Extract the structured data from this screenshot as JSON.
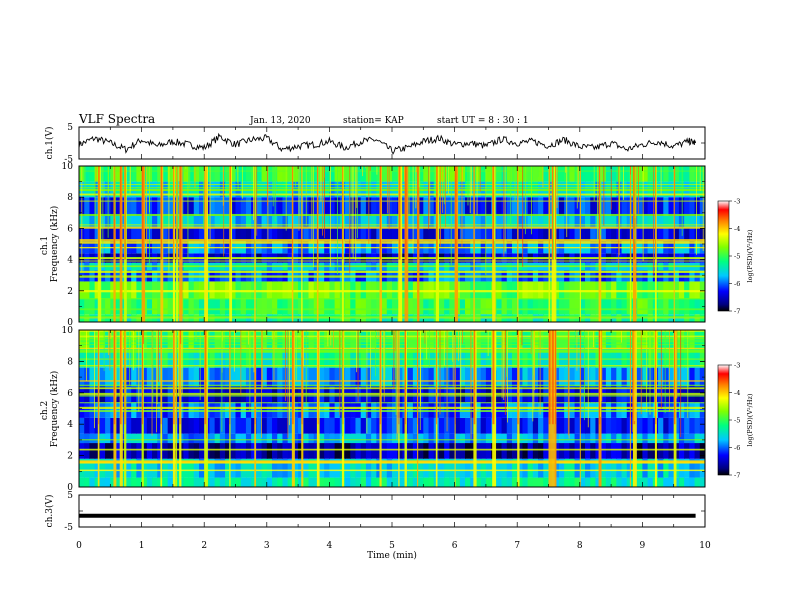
{
  "header": {
    "title": "VLF Spectra",
    "date": "Jan. 13, 2020",
    "station": "station= KAP",
    "start": "start  UT  =   8  : 30 : 1"
  },
  "chart_data": [
    {
      "type": "line",
      "name": "ch1-waveform",
      "ylabel": "ch.1(V)",
      "xlim": [
        0,
        10
      ],
      "ylim": [
        -5,
        5
      ],
      "yticks": [
        "5",
        "-5"
      ],
      "x": [
        0,
        0.25,
        0.5,
        0.75,
        1,
        1.25,
        1.5,
        1.75,
        2,
        2.25,
        2.5,
        2.75,
        3,
        3.25,
        3.5,
        3.75,
        4,
        4.25,
        4.5,
        4.75,
        5,
        5.25,
        5.5,
        5.75,
        6,
        6.25,
        6.5,
        6.75,
        7,
        7.25,
        7.5,
        7.75,
        8,
        8.25,
        8.5,
        8.75,
        9,
        9.25,
        9.5,
        9.75,
        9.85
      ],
      "values": [
        -0.5,
        1.5,
        0,
        -2,
        1,
        -1,
        0.5,
        -0.5,
        -1.5,
        2,
        -0.5,
        1,
        1.5,
        -2,
        -1,
        -0.5,
        0.5,
        -1.5,
        0.5,
        1,
        -2.5,
        -1.5,
        0.5,
        1.5,
        -0.5,
        0,
        -1,
        1.2,
        0,
        0.5,
        -0.8,
        1,
        -1.2,
        -1.5,
        0,
        -2,
        -0.5,
        0.5,
        -1,
        0.5,
        0
      ]
    },
    {
      "type": "heatmap",
      "name": "ch1-spectrogram",
      "ylabel": "ch.1\nFrequency (kHz)",
      "ylabel_lines": [
        "ch.1",
        "Frequency  (kHz)"
      ],
      "xlim": [
        0,
        10
      ],
      "ylim": [
        0,
        10
      ],
      "yticks": [
        "0",
        "2",
        "4",
        "6",
        "8",
        "10"
      ],
      "colorbar": {
        "label": "log(PSD)(V²/Hz)",
        "ticks": [
          "-3",
          "-4",
          "-5",
          "-6",
          "-7"
        ],
        "range": [
          -7,
          -3
        ]
      },
      "bands": [
        {
          "from": 0,
          "to": 0.5,
          "level": -5.2
        },
        {
          "from": 0.5,
          "to": 1.5,
          "level": -5.0
        },
        {
          "from": 1.5,
          "to": 2.6,
          "level": -4.8
        },
        {
          "from": 2.6,
          "to": 3.3,
          "level": -6.0
        },
        {
          "from": 3.3,
          "to": 3.8,
          "level": -5.6
        },
        {
          "from": 3.8,
          "to": 4.4,
          "level": -6.5
        },
        {
          "from": 4.4,
          "to": 5.2,
          "level": -5.9
        },
        {
          "from": 5.2,
          "to": 6.0,
          "level": -6.3
        },
        {
          "from": 6.0,
          "to": 6.8,
          "level": -5.7
        },
        {
          "from": 6.8,
          "to": 8.0,
          "level": -6.2
        },
        {
          "from": 8.0,
          "to": 9.0,
          "level": -5.6
        },
        {
          "from": 9.0,
          "to": 10.0,
          "level": -5.0
        }
      ],
      "bursts": [
        0.3,
        0.55,
        0.65,
        0.72,
        1.0,
        1.3,
        1.5,
        1.55,
        1.6,
        2.0,
        2.4,
        2.8,
        3.4,
        3.55,
        3.8,
        4.2,
        4.8,
        5.1,
        5.2,
        5.4,
        5.7,
        6.0,
        6.3,
        6.6,
        7.0,
        7.5,
        7.55,
        7.6,
        8.0,
        8.3,
        8.8,
        8.85,
        9.2,
        9.5
      ]
    },
    {
      "type": "heatmap",
      "name": "ch2-spectrogram",
      "ylabel": "ch.2\nFrequency (kHz)",
      "ylabel_lines": [
        "ch.2",
        "Frequency  (kHz)"
      ],
      "xlim": [
        0,
        10
      ],
      "ylim": [
        0,
        10
      ],
      "yticks": [
        "0",
        "2",
        "4",
        "6",
        "8",
        "10"
      ],
      "colorbar": {
        "label": "log(PSD)(V²/Hz)",
        "ticks": [
          "-3",
          "-4",
          "-5",
          "-6",
          "-7"
        ],
        "range": [
          -7,
          -3
        ]
      },
      "bands": [
        {
          "from": 0,
          "to": 0.6,
          "level": -5.4
        },
        {
          "from": 0.6,
          "to": 1.8,
          "level": -5.6
        },
        {
          "from": 1.8,
          "to": 2.8,
          "level": -6.6
        },
        {
          "from": 2.8,
          "to": 3.4,
          "level": -5.8
        },
        {
          "from": 3.4,
          "to": 4.4,
          "level": -6.2
        },
        {
          "from": 4.4,
          "to": 5.4,
          "level": -6.0
        },
        {
          "from": 5.4,
          "to": 6.4,
          "level": -6.4
        },
        {
          "from": 6.4,
          "to": 7.6,
          "level": -5.9
        },
        {
          "from": 7.6,
          "to": 8.8,
          "level": -5.3
        },
        {
          "from": 8.8,
          "to": 10.0,
          "level": -5.0
        }
      ],
      "bursts": [
        0.3,
        0.55,
        0.65,
        0.72,
        1.0,
        1.3,
        1.5,
        1.55,
        1.6,
        2.0,
        2.4,
        2.8,
        3.4,
        3.55,
        3.8,
        4.2,
        4.8,
        5.1,
        5.2,
        5.4,
        5.7,
        6.0,
        6.3,
        6.6,
        7.0,
        7.5,
        7.55,
        7.6,
        8.0,
        8.3,
        8.8,
        8.85,
        9.2,
        9.5
      ]
    },
    {
      "type": "line",
      "name": "ch3-waveform",
      "ylabel": "ch.3(V)",
      "xlabel": "Time  (min)",
      "xlim": [
        0,
        10
      ],
      "ylim": [
        -5,
        5
      ],
      "yticks": [
        "5",
        "-5"
      ],
      "xticks": [
        "0",
        "1",
        "2",
        "3",
        "4",
        "5",
        "6",
        "7",
        "8",
        "9",
        "10"
      ],
      "x": [
        0,
        9.85
      ],
      "values": [
        -1.5,
        -1.5
      ]
    }
  ]
}
